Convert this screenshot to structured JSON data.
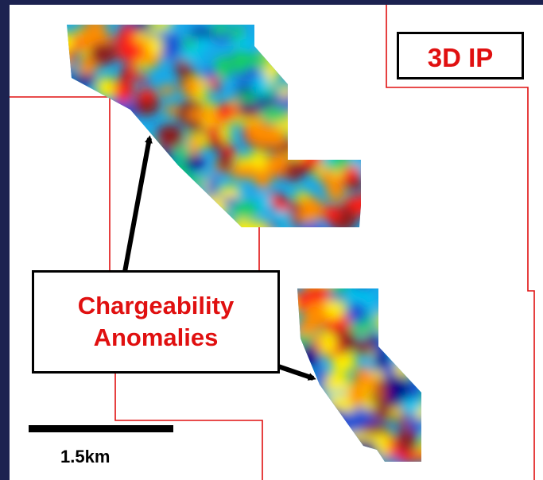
{
  "title": "3D IP",
  "annotation": {
    "line1": "Chargeability",
    "line2": "Anomalies"
  },
  "scale_bar": {
    "label": "1.5km"
  },
  "colors": {
    "frame": "#1c2250",
    "boundary": "#e01010",
    "label_text": "#e01010",
    "ramp": [
      "#00008b",
      "#1b4fd6",
      "#00c8f0",
      "#18d060",
      "#ffee00",
      "#ff8c00",
      "#ff1e14",
      "#8b1a1a"
    ]
  }
}
